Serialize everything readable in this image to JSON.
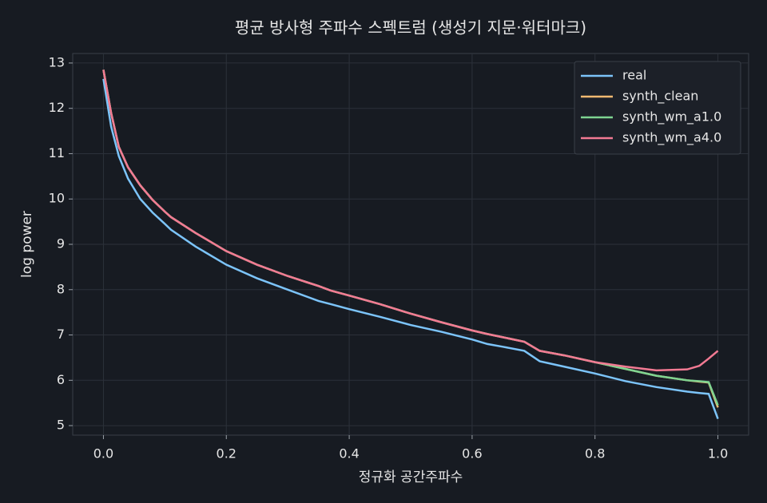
{
  "chart_data": {
    "type": "line",
    "title": "평균 방사형 주파수 스펙트럼 (생성기 지문·워터마크)",
    "x_label": "정규화 공간주파수",
    "y_label": "log power",
    "x": [
      0,
      0.0125,
      0.025,
      0.04,
      0.06,
      0.08,
      0.1,
      0.11,
      0.15,
      0.2,
      0.25,
      0.3,
      0.35,
      0.37,
      0.4,
      0.45,
      0.5,
      0.55,
      0.6,
      0.625,
      0.65,
      0.685,
      0.71,
      0.75,
      0.8,
      0.85,
      0.9,
      0.95,
      0.97,
      0.985,
      1.0
    ],
    "series": [
      {
        "name": "real",
        "color": "#7cc4fa",
        "values": [
          12.65,
          11.6,
          10.95,
          10.45,
          10.0,
          9.7,
          9.45,
          9.32,
          8.95,
          8.55,
          8.25,
          8.0,
          7.75,
          7.68,
          7.57,
          7.4,
          7.22,
          7.07,
          6.9,
          6.8,
          6.74,
          6.65,
          6.42,
          6.3,
          6.15,
          5.98,
          5.85,
          5.75,
          5.72,
          5.7,
          5.15
        ]
      },
      {
        "name": "synth_clean",
        "color": "#f5b971",
        "values": [
          12.85,
          11.9,
          11.15,
          10.7,
          10.3,
          9.98,
          9.72,
          9.6,
          9.25,
          8.85,
          8.55,
          8.3,
          8.08,
          7.98,
          7.87,
          7.68,
          7.47,
          7.28,
          7.1,
          7.02,
          6.95,
          6.85,
          6.65,
          6.55,
          6.4,
          6.25,
          6.1,
          6.0,
          5.97,
          5.95,
          5.4
        ]
      },
      {
        "name": "synth_wm_a1.0",
        "color": "#7ed491",
        "values": [
          12.85,
          11.9,
          11.15,
          10.7,
          10.3,
          9.98,
          9.72,
          9.6,
          9.25,
          8.85,
          8.55,
          8.3,
          8.08,
          7.98,
          7.87,
          7.68,
          7.47,
          7.28,
          7.1,
          7.02,
          6.95,
          6.85,
          6.65,
          6.55,
          6.4,
          6.25,
          6.1,
          6.0,
          5.98,
          5.96,
          5.45
        ]
      },
      {
        "name": "synth_wm_a4.0",
        "color": "#f27a93",
        "values": [
          12.85,
          11.9,
          11.15,
          10.7,
          10.3,
          9.98,
          9.72,
          9.6,
          9.25,
          8.85,
          8.55,
          8.3,
          8.08,
          7.98,
          7.87,
          7.68,
          7.47,
          7.28,
          7.1,
          7.02,
          6.95,
          6.85,
          6.65,
          6.55,
          6.4,
          6.3,
          6.22,
          6.24,
          6.32,
          6.48,
          6.65
        ]
      }
    ],
    "xlim": [
      -0.05,
      1.05
    ],
    "ylim": [
      4.79,
      13.21
    ],
    "xticks": [
      {
        "value": 0,
        "label": "0.0"
      },
      0.2,
      0.4,
      0.6,
      0.8,
      {
        "value": 1,
        "label": "1.0"
      }
    ],
    "yticks": [
      5,
      6,
      7,
      8,
      9,
      10,
      11,
      12,
      13
    ],
    "grid": true,
    "legend": "upper right"
  }
}
